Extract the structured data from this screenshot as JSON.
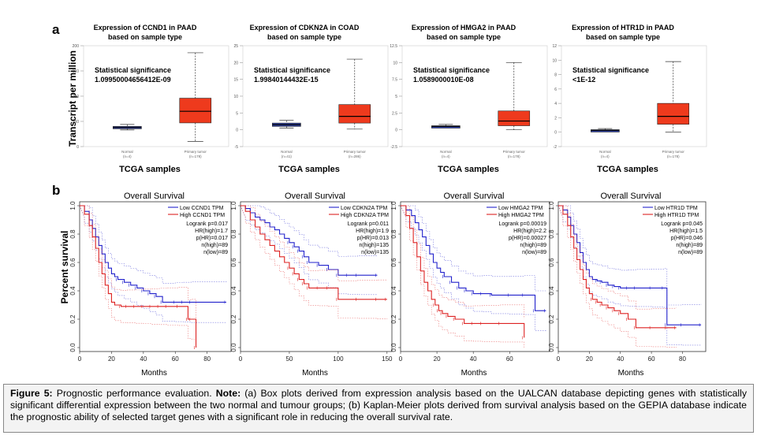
{
  "panel_a_label": "a",
  "panel_b_label": "b",
  "box_ylabel": "Transcript per million",
  "box_xlabel": "TCGA samples",
  "km_ylabel": "Percent survival",
  "km_xlabel": "Months",
  "km_title": "Overall Survival",
  "caption": {
    "label": "Figure 5:",
    "text1": " Prognostic performance evaluation. ",
    "note": "Note:",
    "text2": " (a) Box plots derived from expression analysis based on the UALCAN database depicting genes with statistically significant differential expression between the two normal and tumour groups; (b) Kaplan-Meier plots derived from survival analysis based on the GEPIA database indicate the prognostic ability of selected target genes with a significant role in reducing the overall survival rate."
  },
  "chart_data": [
    {
      "type": "box",
      "title": "Expression of CCND1 in PAAD based on sample type",
      "title1": "Expression of CCND1 in PAAD",
      "title2": "based on sample type",
      "sig_label": "Statistical significance",
      "sig_value": "1.09950004656412E-09",
      "ylim": [
        0,
        200
      ],
      "yticks": [
        "0",
        "50",
        "100",
        "150",
        "200"
      ],
      "categories": [
        "Normal",
        "Primary tumor"
      ],
      "ns": [
        "(n=4)",
        "(n=178)"
      ],
      "boxes": [
        {
          "min": 33,
          "q1": 36,
          "median": 38,
          "q3": 40,
          "max": 44
        },
        {
          "min": 10,
          "q1": 47,
          "median": 70,
          "q3": 96,
          "max": 186
        }
      ]
    },
    {
      "type": "box",
      "title": "Expression of CDKN2A in COAD based on sample type",
      "title1": "Expression of CDKN2A in COAD",
      "title2": "based on sample type",
      "sig_label": "Statistical significance",
      "sig_value": "1.99840144432E-15",
      "ylim": [
        -5,
        25
      ],
      "yticks": [
        "-5",
        "0",
        "5",
        "10",
        "15",
        "20",
        "25"
      ],
      "categories": [
        "Normal",
        "Primary tumor"
      ],
      "ns": [
        "(n=41)",
        "(n=286)"
      ],
      "boxes": [
        {
          "min": 0.5,
          "q1": 1,
          "median": 1.5,
          "q3": 2,
          "max": 2.8
        },
        {
          "min": 0.2,
          "q1": 2,
          "median": 4,
          "q3": 7.5,
          "max": 21
        }
      ]
    },
    {
      "type": "box",
      "title": "Expression of HMGA2 in PAAD based on sample type",
      "title1": "Expression of HMGA2 in PAAD",
      "title2": "based on sample type",
      "sig_label": "Statistical significance",
      "sig_value": "1.0589000010E-08",
      "ylim": [
        -2.5,
        12.5
      ],
      "yticks": [
        "-2.5",
        "0",
        "2.5",
        "5",
        "7.5",
        "10",
        "12.5"
      ],
      "categories": [
        "Normal",
        "Primary tumor"
      ],
      "ns": [
        "(n=4)",
        "(n=178)"
      ],
      "boxes": [
        {
          "min": 0.3,
          "q1": 0.4,
          "median": 0.5,
          "q3": 0.6,
          "max": 0.8
        },
        {
          "min": 0,
          "q1": 0.6,
          "median": 1.3,
          "q3": 2.8,
          "max": 10
        }
      ]
    },
    {
      "type": "box",
      "title": "Expression of HTR1D in PAAD based on sample type",
      "title1": "Expression of HTR1D in PAAD",
      "title2": "based on sample type",
      "sig_label": "Statistical significance",
      "sig_value": "<1E-12",
      "ylim": [
        -2,
        12
      ],
      "yticks": [
        "-2",
        "0",
        "2",
        "4",
        "6",
        "8",
        "10",
        "12"
      ],
      "categories": [
        "Normal",
        "Primary tumor"
      ],
      "ns": [
        "(n=4)",
        "(n=178)"
      ],
      "boxes": [
        {
          "min": 0.1,
          "q1": 0.2,
          "median": 0.25,
          "q3": 0.35,
          "max": 0.5
        },
        {
          "min": 0,
          "q1": 1.1,
          "median": 2.2,
          "q3": 4,
          "max": 9.8
        }
      ]
    },
    {
      "type": "line",
      "title": "Overall Survival",
      "xlabel": "Months",
      "ylabel": "Percent survival",
      "xlim": [
        0,
        95
      ],
      "xticks": [
        0,
        20,
        40,
        60,
        80
      ],
      "ylim": [
        0,
        1
      ],
      "yticks": [
        "0.0",
        "0.2",
        "0.4",
        "0.6",
        "0.8",
        "1.0"
      ],
      "legend": [
        "Low CCND1 TPM",
        "High CCND1 TPM"
      ],
      "stats": [
        "Logrank p=0.017",
        "HR(high)=1.7",
        "p(HR)=0.017",
        "n(high)=89",
        "n(low)=89"
      ],
      "series": [
        {
          "name": "Low CCND1 TPM",
          "x": [
            0,
            3,
            6,
            8,
            10,
            12,
            14,
            16,
            18,
            20,
            22,
            24,
            28,
            32,
            36,
            40,
            44,
            48,
            52,
            60,
            65,
            70,
            92
          ],
          "y": [
            1,
            0.96,
            0.9,
            0.84,
            0.78,
            0.72,
            0.66,
            0.6,
            0.56,
            0.52,
            0.5,
            0.48,
            0.46,
            0.44,
            0.42,
            0.4,
            0.38,
            0.36,
            0.32,
            0.32,
            0.32,
            0.32,
            0.32
          ]
        },
        {
          "name": "High CCND1 TPM",
          "x": [
            0,
            3,
            6,
            8,
            10,
            12,
            14,
            16,
            18,
            20,
            22,
            26,
            30,
            35,
            40,
            45,
            50,
            55,
            62,
            68,
            70,
            73
          ],
          "y": [
            1,
            0.94,
            0.86,
            0.78,
            0.7,
            0.6,
            0.52,
            0.44,
            0.38,
            0.32,
            0.3,
            0.29,
            0.29,
            0.29,
            0.29,
            0.29,
            0.29,
            0.29,
            0.29,
            0.2,
            0.2,
            0
          ]
        }
      ]
    },
    {
      "type": "line",
      "title": "Overall Survival",
      "xlabel": "Months",
      "ylabel": "Percent survival",
      "xlim": [
        0,
        155
      ],
      "xticks": [
        0,
        50,
        100,
        150
      ],
      "ylim": [
        0,
        1
      ],
      "yticks": [
        "0.0",
        "0.2",
        "0.4",
        "0.6",
        "0.8",
        "1.0"
      ],
      "legend": [
        "Low CDKN2A TPM",
        "High CDKN2A TPM"
      ],
      "stats": [
        "Logrank p=0.011",
        "HR(high)=1.9",
        "p(HR)=0.013",
        "n(high)=135",
        "n(low)=135"
      ],
      "series": [
        {
          "name": "Low CDKN2A TPM",
          "x": [
            0,
            5,
            10,
            15,
            20,
            25,
            30,
            35,
            40,
            45,
            50,
            55,
            60,
            65,
            70,
            80,
            90,
            100,
            110,
            120,
            140
          ],
          "y": [
            1,
            0.98,
            0.95,
            0.92,
            0.9,
            0.88,
            0.85,
            0.83,
            0.8,
            0.77,
            0.74,
            0.71,
            0.68,
            0.64,
            0.6,
            0.58,
            0.55,
            0.51,
            0.51,
            0.51,
            0.51
          ]
        },
        {
          "name": "High CDKN2A TPM",
          "x": [
            0,
            5,
            10,
            15,
            20,
            25,
            30,
            35,
            40,
            45,
            50,
            55,
            60,
            65,
            70,
            80,
            90,
            100,
            120,
            140,
            150
          ],
          "y": [
            1,
            0.96,
            0.9,
            0.85,
            0.8,
            0.76,
            0.72,
            0.68,
            0.64,
            0.6,
            0.56,
            0.52,
            0.48,
            0.45,
            0.42,
            0.42,
            0.42,
            0.34,
            0.34,
            0.34,
            0.34
          ]
        }
      ]
    },
    {
      "type": "line",
      "title": "Overall Survival",
      "xlabel": "Months",
      "ylabel": "Percent survival",
      "xlim": [
        0,
        82
      ],
      "xticks": [
        0,
        20,
        40,
        60
      ],
      "ylim": [
        0,
        1
      ],
      "yticks": [
        "0.0",
        "0.2",
        "0.4",
        "0.6",
        "0.8",
        "1.0"
      ],
      "legend": [
        "Low HMGA2 TPM",
        "High HMGA2 TPM"
      ],
      "stats": [
        "Logrank p=0.00019",
        "HR(high)=2.2",
        "p(HR)=0.00027",
        "n(high)=89",
        "n(low)=89"
      ],
      "series": [
        {
          "name": "Low HMGA2 TPM",
          "x": [
            0,
            3,
            6,
            8,
            10,
            12,
            14,
            16,
            18,
            20,
            22,
            24,
            28,
            32,
            36,
            40,
            45,
            50,
            60,
            68,
            74,
            80
          ],
          "y": [
            1,
            0.97,
            0.93,
            0.88,
            0.83,
            0.78,
            0.72,
            0.66,
            0.6,
            0.56,
            0.53,
            0.5,
            0.46,
            0.42,
            0.4,
            0.38,
            0.38,
            0.37,
            0.37,
            0.37,
            0.26,
            0.26
          ]
        },
        {
          "name": "High HMGA2 TPM",
          "x": [
            0,
            3,
            5,
            7,
            9,
            11,
            13,
            15,
            17,
            19,
            21,
            23,
            26,
            30,
            35,
            40,
            45,
            55,
            68
          ],
          "y": [
            1,
            0.93,
            0.84,
            0.74,
            0.64,
            0.54,
            0.46,
            0.4,
            0.34,
            0.3,
            0.26,
            0.24,
            0.22,
            0.2,
            0.17,
            0.17,
            0.17,
            0.17,
            0.07
          ]
        }
      ]
    },
    {
      "type": "line",
      "title": "Overall Survival",
      "xlabel": "Months",
      "ylabel": "Percent survival",
      "xlim": [
        0,
        95
      ],
      "xticks": [
        0,
        20,
        40,
        60,
        80
      ],
      "ylim": [
        0,
        1
      ],
      "yticks": [
        "0.0",
        "0.2",
        "0.4",
        "0.6",
        "0.8",
        "1.0"
      ],
      "legend": [
        "Low HTR1D TPM",
        "High HTR1D TPM"
      ],
      "stats": [
        "Logrank p=0.045",
        "HR(high)=1.5",
        "p(HR)=0.046",
        "n(high)=89",
        "n(low)=89"
      ],
      "series": [
        {
          "name": "Low HTR1D TPM",
          "x": [
            0,
            3,
            6,
            8,
            10,
            12,
            14,
            16,
            18,
            20,
            22,
            25,
            28,
            32,
            36,
            40,
            45,
            50,
            60,
            68,
            70,
            80,
            92
          ],
          "y": [
            1,
            0.97,
            0.92,
            0.86,
            0.8,
            0.74,
            0.67,
            0.6,
            0.55,
            0.5,
            0.48,
            0.47,
            0.46,
            0.44,
            0.43,
            0.42,
            0.42,
            0.42,
            0.42,
            0.42,
            0.16,
            0.16,
            0.16
          ]
        },
        {
          "name": "High HTR1D TPM",
          "x": [
            0,
            3,
            6,
            8,
            10,
            12,
            14,
            16,
            18,
            20,
            22,
            25,
            28,
            32,
            36,
            40,
            45,
            50,
            60,
            70,
            76
          ],
          "y": [
            1,
            0.94,
            0.86,
            0.78,
            0.7,
            0.62,
            0.55,
            0.48,
            0.42,
            0.38,
            0.34,
            0.32,
            0.3,
            0.28,
            0.26,
            0.24,
            0.2,
            0.14,
            0.14,
            0.14,
            0.14
          ]
        }
      ]
    }
  ]
}
